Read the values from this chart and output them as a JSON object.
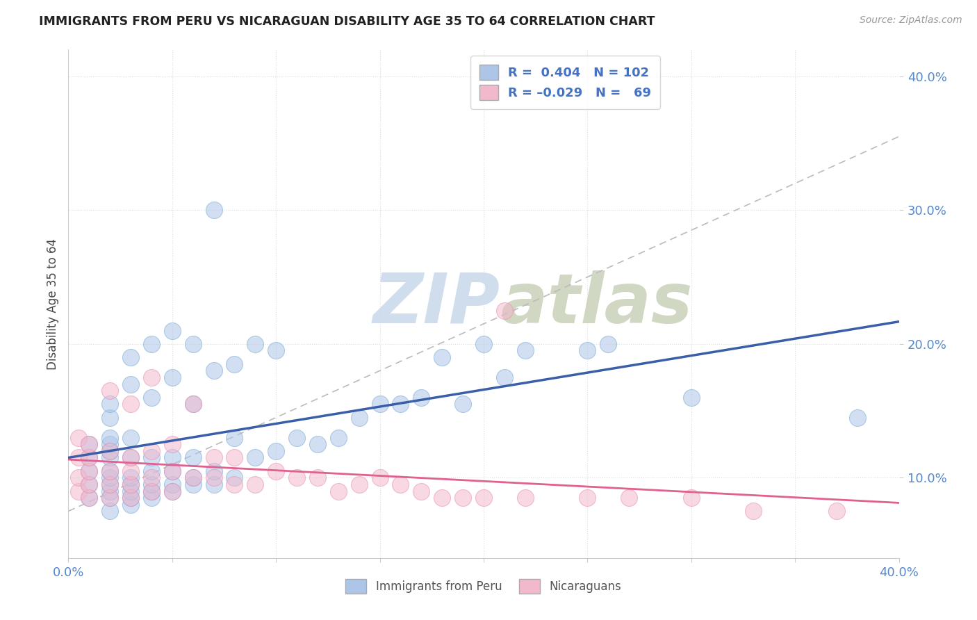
{
  "title": "IMMIGRANTS FROM PERU VS NICARAGUAN DISABILITY AGE 35 TO 64 CORRELATION CHART",
  "source": "Source: ZipAtlas.com",
  "ylabel": "Disability Age 35 to 64",
  "xlim": [
    0.0,
    0.4
  ],
  "ylim": [
    0.04,
    0.42
  ],
  "xticks": [
    0.0,
    0.05,
    0.1,
    0.15,
    0.2,
    0.25,
    0.3,
    0.35,
    0.4
  ],
  "ytick_positions": [
    0.1,
    0.2,
    0.3,
    0.4
  ],
  "ytick_labels": [
    "10.0%",
    "20.0%",
    "30.0%",
    "40.0%"
  ],
  "blue_R": 0.404,
  "blue_N": 102,
  "pink_R": -0.029,
  "pink_N": 69,
  "blue_color": "#adc6e8",
  "pink_color": "#f2b8cc",
  "blue_edge_color": "#7aaad4",
  "pink_edge_color": "#e890b0",
  "blue_line_color": "#3a5fa8",
  "pink_line_color": "#e06090",
  "ref_line_color": "#bbbbbb",
  "legend_text_color": "#4472c4",
  "watermark_color": "#c8d8ea",
  "background_color": "#ffffff",
  "grid_color": "#dddddd",
  "blue_scatter_x": [
    0.01,
    0.01,
    0.01,
    0.01,
    0.01,
    0.02,
    0.02,
    0.02,
    0.02,
    0.02,
    0.02,
    0.02,
    0.02,
    0.02,
    0.02,
    0.02,
    0.02,
    0.03,
    0.03,
    0.03,
    0.03,
    0.03,
    0.03,
    0.03,
    0.03,
    0.03,
    0.04,
    0.04,
    0.04,
    0.04,
    0.04,
    0.04,
    0.04,
    0.05,
    0.05,
    0.05,
    0.05,
    0.05,
    0.05,
    0.06,
    0.06,
    0.06,
    0.06,
    0.06,
    0.07,
    0.07,
    0.07,
    0.07,
    0.08,
    0.08,
    0.08,
    0.09,
    0.09,
    0.1,
    0.1,
    0.11,
    0.12,
    0.13,
    0.14,
    0.15,
    0.16,
    0.17,
    0.18,
    0.19,
    0.2,
    0.21,
    0.22,
    0.25,
    0.26,
    0.3,
    0.38
  ],
  "blue_scatter_y": [
    0.085,
    0.095,
    0.105,
    0.115,
    0.125,
    0.075,
    0.085,
    0.09,
    0.095,
    0.1,
    0.105,
    0.115,
    0.12,
    0.125,
    0.13,
    0.145,
    0.155,
    0.08,
    0.085,
    0.09,
    0.095,
    0.1,
    0.115,
    0.13,
    0.17,
    0.19,
    0.085,
    0.09,
    0.095,
    0.105,
    0.115,
    0.16,
    0.2,
    0.09,
    0.095,
    0.105,
    0.115,
    0.175,
    0.21,
    0.095,
    0.1,
    0.115,
    0.155,
    0.2,
    0.095,
    0.105,
    0.18,
    0.3,
    0.1,
    0.13,
    0.185,
    0.115,
    0.2,
    0.12,
    0.195,
    0.13,
    0.125,
    0.13,
    0.145,
    0.155,
    0.155,
    0.16,
    0.19,
    0.155,
    0.2,
    0.175,
    0.195,
    0.195,
    0.2,
    0.16,
    0.145
  ],
  "pink_scatter_x": [
    0.005,
    0.005,
    0.005,
    0.005,
    0.01,
    0.01,
    0.01,
    0.01,
    0.01,
    0.02,
    0.02,
    0.02,
    0.02,
    0.02,
    0.03,
    0.03,
    0.03,
    0.03,
    0.03,
    0.04,
    0.04,
    0.04,
    0.04,
    0.05,
    0.05,
    0.05,
    0.06,
    0.06,
    0.07,
    0.07,
    0.08,
    0.08,
    0.09,
    0.1,
    0.11,
    0.12,
    0.13,
    0.14,
    0.15,
    0.16,
    0.17,
    0.18,
    0.19,
    0.2,
    0.21,
    0.22,
    0.25,
    0.27,
    0.3,
    0.33,
    0.37
  ],
  "pink_scatter_y": [
    0.09,
    0.1,
    0.115,
    0.13,
    0.085,
    0.095,
    0.105,
    0.115,
    0.125,
    0.085,
    0.095,
    0.105,
    0.12,
    0.165,
    0.085,
    0.095,
    0.105,
    0.115,
    0.155,
    0.09,
    0.1,
    0.12,
    0.175,
    0.09,
    0.105,
    0.125,
    0.1,
    0.155,
    0.1,
    0.115,
    0.095,
    0.115,
    0.095,
    0.105,
    0.1,
    0.1,
    0.09,
    0.095,
    0.1,
    0.095,
    0.09,
    0.085,
    0.085,
    0.085,
    0.225,
    0.085,
    0.085,
    0.085,
    0.085,
    0.075,
    0.075
  ]
}
